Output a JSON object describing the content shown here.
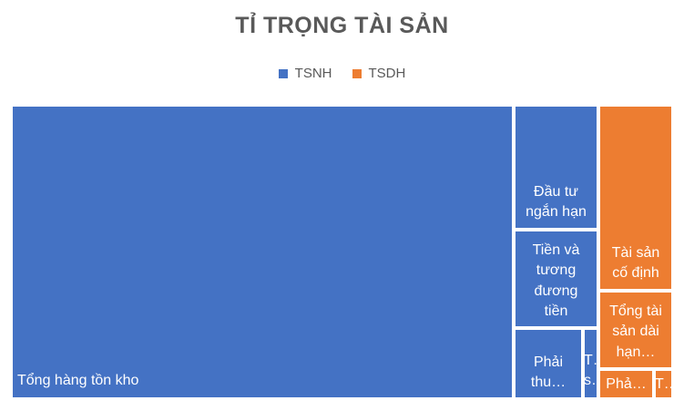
{
  "chart_data": {
    "type": "treemap",
    "title": "TỈ TRỌNG TÀI SẢN",
    "legend": {
      "position": "top",
      "entries": [
        {
          "name": "TSNH",
          "color": "#4472C4"
        },
        {
          "name": "TSDH",
          "color": "#ED7D31"
        }
      ]
    },
    "tiles": [
      {
        "label": "Tổng hàng tồn kho",
        "group": "TSNH",
        "color": "#4472C4"
      },
      {
        "label": "Đầu tư\nngắn hạn",
        "group": "TSNH",
        "color": "#4472C4"
      },
      {
        "label": "Tiền và\ntương\nđương\ntiền",
        "group": "TSNH",
        "color": "#4472C4"
      },
      {
        "label": "Phải\nthu…",
        "group": "TSNH",
        "color": "#4472C4"
      },
      {
        "label": "T…\ns…",
        "group": "TSNH",
        "color": "#4472C4"
      },
      {
        "label": "Tài sản\ncố định",
        "group": "TSDH",
        "color": "#ED7D31"
      },
      {
        "label": "Tổng tài\nsản dài\nhạn…",
        "group": "TSDH",
        "color": "#ED7D31"
      },
      {
        "label": "Phả…",
        "group": "TSDH",
        "color": "#ED7D31"
      },
      {
        "label": "T…",
        "group": "TSDH",
        "color": "#ED7D31"
      }
    ]
  }
}
